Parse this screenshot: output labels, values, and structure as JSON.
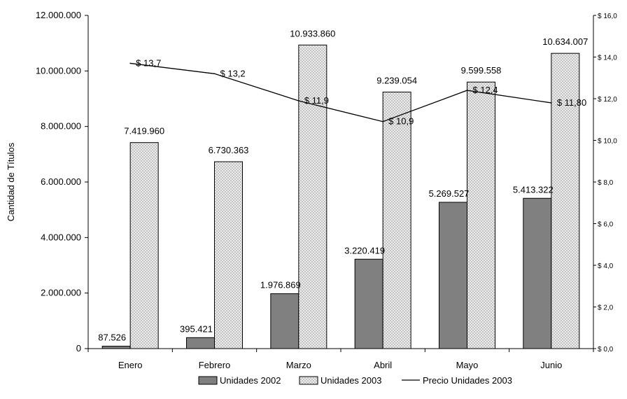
{
  "chart_data": {
    "type": "bar",
    "title": "",
    "ylabel": "Cantidad de Títulos",
    "ylim": [
      0,
      12000000
    ],
    "y_ticks": [
      "0",
      "2.000.000",
      "4.000.000",
      "6.000.000",
      "8.000.000",
      "10.000.000",
      "12.000.000"
    ],
    "y2lim": [
      0,
      16
    ],
    "y2_ticks": [
      "$ 0,0",
      "$ 2,0",
      "$ 4,0",
      "$ 6,0",
      "$ 8,0",
      "$ 10,0",
      "$ 12,0",
      "$ 14,0",
      "$ 16,0"
    ],
    "categories": [
      "Enero",
      "Febrero",
      "Marzo",
      "Abril",
      "Mayo",
      "Junio"
    ],
    "series": [
      {
        "name": "Unidades 2002",
        "type": "bar",
        "axis": "left",
        "color": "#808080",
        "values": [
          87526,
          395421,
          1976869,
          3220419,
          5269527,
          5413322
        ],
        "labels": [
          "87.526",
          "395.421",
          "1.976.869",
          "3.220.419",
          "5.269.527",
          "5.413.322"
        ]
      },
      {
        "name": "Unidades 2003",
        "type": "bar",
        "axis": "left",
        "color": "#e6e6e6",
        "pattern": "crosshatch",
        "values": [
          7419960,
          6730363,
          10933860,
          9239054,
          9599558,
          10634007
        ],
        "labels": [
          "7.419.960",
          "6.730.363",
          "10.933.860",
          "9.239.054",
          "9.599.558",
          "10.634.007"
        ]
      },
      {
        "name": "Precio Unidades 2003",
        "type": "line",
        "axis": "right",
        "color": "#000000",
        "values": [
          13.7,
          13.2,
          11.9,
          10.9,
          12.4,
          11.8
        ],
        "labels": [
          "$ 13,7",
          "$ 13,2",
          "$ 11,9",
          "$ 10,9",
          "$ 12,4",
          "$ 11,80"
        ]
      }
    ],
    "legend_position": "bottom",
    "grid": false
  }
}
